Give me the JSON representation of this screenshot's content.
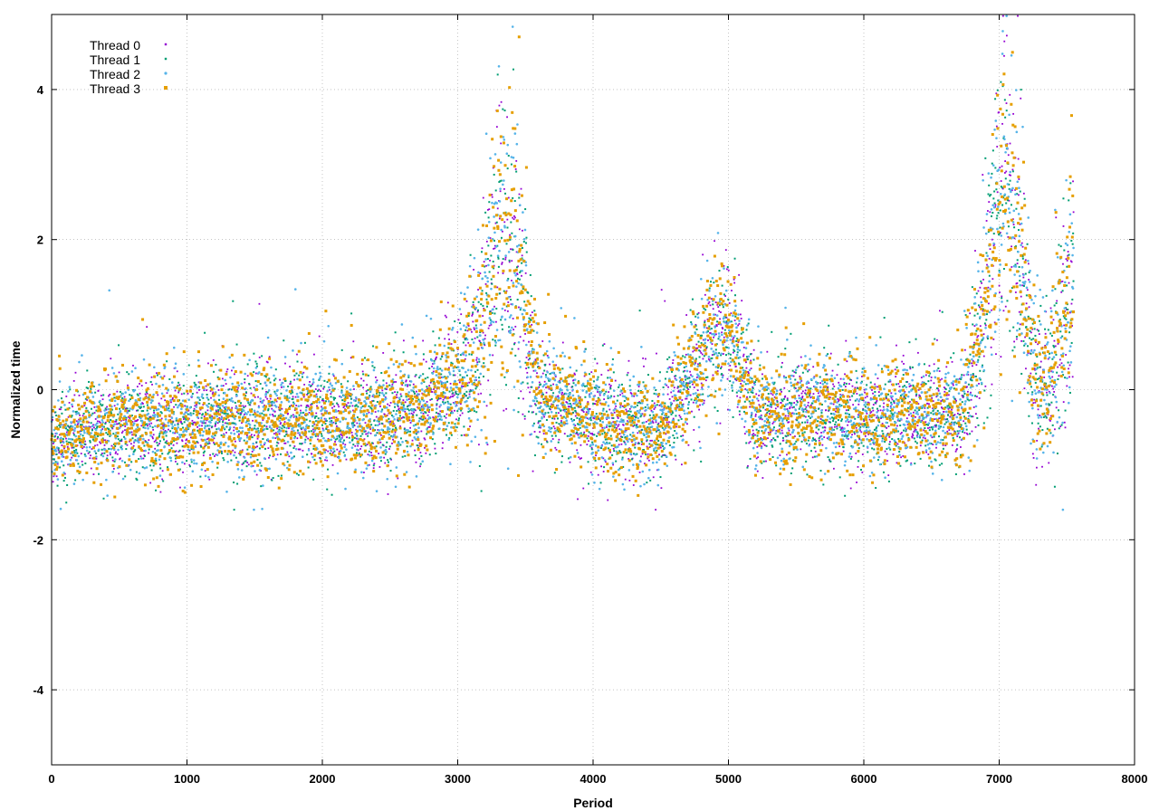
{
  "chart_data": {
    "type": "scatter",
    "title": "",
    "xlabel": "Period",
    "ylabel": "Normalized time",
    "xlim": [
      0,
      8000
    ],
    "ylim": [
      -5,
      5
    ],
    "xticks": [
      0,
      1000,
      2000,
      3000,
      4000,
      5000,
      6000,
      7000,
      8000
    ],
    "yticks": [
      -4,
      -2,
      0,
      2,
      4
    ],
    "grid": true,
    "legend_position": "top-left",
    "point_count_per_series": 7550,
    "series": [
      {
        "name": "Thread 0",
        "color": "#9400d3",
        "marker": "plus"
      },
      {
        "name": "Thread 1",
        "color": "#009e73",
        "marker": "cross"
      },
      {
        "name": "Thread 2",
        "color": "#56b4e9",
        "marker": "dot"
      },
      {
        "name": "Thread 3",
        "color": "#e69f00",
        "marker": "square"
      }
    ],
    "trend": {
      "description": "approximate median normalized time vs period (per-series points are dense and scattered around this trend with spikes)",
      "x": [
        0,
        300,
        600,
        900,
        1200,
        1500,
        1800,
        2100,
        2400,
        2700,
        3000,
        3150,
        3300,
        3450,
        3600,
        3900,
        4200,
        4500,
        4700,
        4900,
        5050,
        5200,
        5500,
        5800,
        6100,
        6400,
        6700,
        6850,
        6950,
        7050,
        7150,
        7250,
        7350,
        7450,
        7550
      ],
      "y": [
        -0.7,
        -0.5,
        -0.45,
        -0.5,
        -0.4,
        -0.45,
        -0.35,
        -0.4,
        -0.4,
        -0.3,
        0.1,
        0.5,
        2.0,
        1.5,
        -0.1,
        -0.3,
        -0.5,
        -0.5,
        0.1,
        0.8,
        0.7,
        -0.4,
        -0.3,
        -0.3,
        -0.4,
        -0.3,
        -0.4,
        0.5,
        2.2,
        2.8,
        1.8,
        0.2,
        0.1,
        0.7,
        1.5
      ],
      "spread": [
        0.35,
        0.4,
        0.45,
        0.45,
        0.45,
        0.55,
        0.45,
        0.45,
        0.5,
        0.45,
        0.5,
        0.9,
        1.4,
        1.3,
        0.45,
        0.45,
        0.45,
        0.45,
        0.5,
        0.6,
        0.6,
        0.45,
        0.45,
        0.5,
        0.45,
        0.45,
        0.5,
        0.8,
        1.3,
        1.3,
        1.1,
        0.8,
        0.7,
        1.0,
        1.2
      ]
    }
  }
}
